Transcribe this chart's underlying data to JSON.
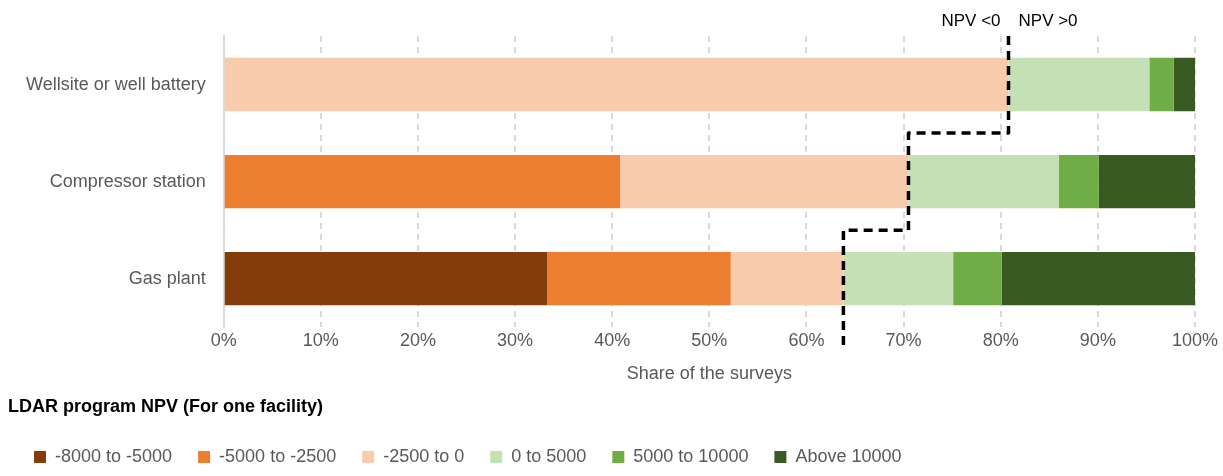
{
  "chart_data": {
    "type": "bar",
    "orientation": "horizontal",
    "stacked": true,
    "xlabel": "Share of the surveys",
    "legend_title": "LDAR program NPV (For one facility)",
    "legend": "bottom left",
    "grid": "x",
    "categories": [
      "Wellsite or well battery",
      "Compressor station",
      "Gas plant"
    ],
    "series": [
      {
        "name": "-8000 to -5000",
        "color": "#843c0c",
        "values": [
          0,
          0,
          33.3
        ]
      },
      {
        "name": "-5000 to -2500",
        "color": "#ed7d31",
        "values": [
          0,
          40.8,
          18.9
        ]
      },
      {
        "name": "-2500 to 0",
        "color": "#f8cbad",
        "values": [
          80.8,
          29.7,
          11.6
        ]
      },
      {
        "name": "0 to 5000",
        "color": "#c5e0b4",
        "values": [
          14.5,
          15.5,
          11.3
        ]
      },
      {
        "name": "5000 to 10000",
        "color": "#70ad47",
        "values": [
          2.5,
          4.1,
          5.0
        ]
      },
      {
        "name": "Above 10000",
        "color": "#3a5a24",
        "values": [
          2.2,
          9.9,
          19.9
        ]
      }
    ],
    "xlim": [
      0,
      100
    ],
    "xticks": [
      {
        "value": 0,
        "label": "0%"
      },
      {
        "value": 10,
        "label": "10%"
      },
      {
        "value": 20,
        "label": "20%"
      },
      {
        "value": 30,
        "label": "30%"
      },
      {
        "value": 40,
        "label": "40%"
      },
      {
        "value": 50,
        "label": "50%"
      },
      {
        "value": 60,
        "label": "60%"
      },
      {
        "value": 70,
        "label": "70%"
      },
      {
        "value": 80,
        "label": "80%"
      },
      {
        "value": 90,
        "label": "90%"
      },
      {
        "value": 100,
        "label": "100%"
      }
    ],
    "annotations": [
      "NPV <0",
      "NPV >0"
    ]
  }
}
